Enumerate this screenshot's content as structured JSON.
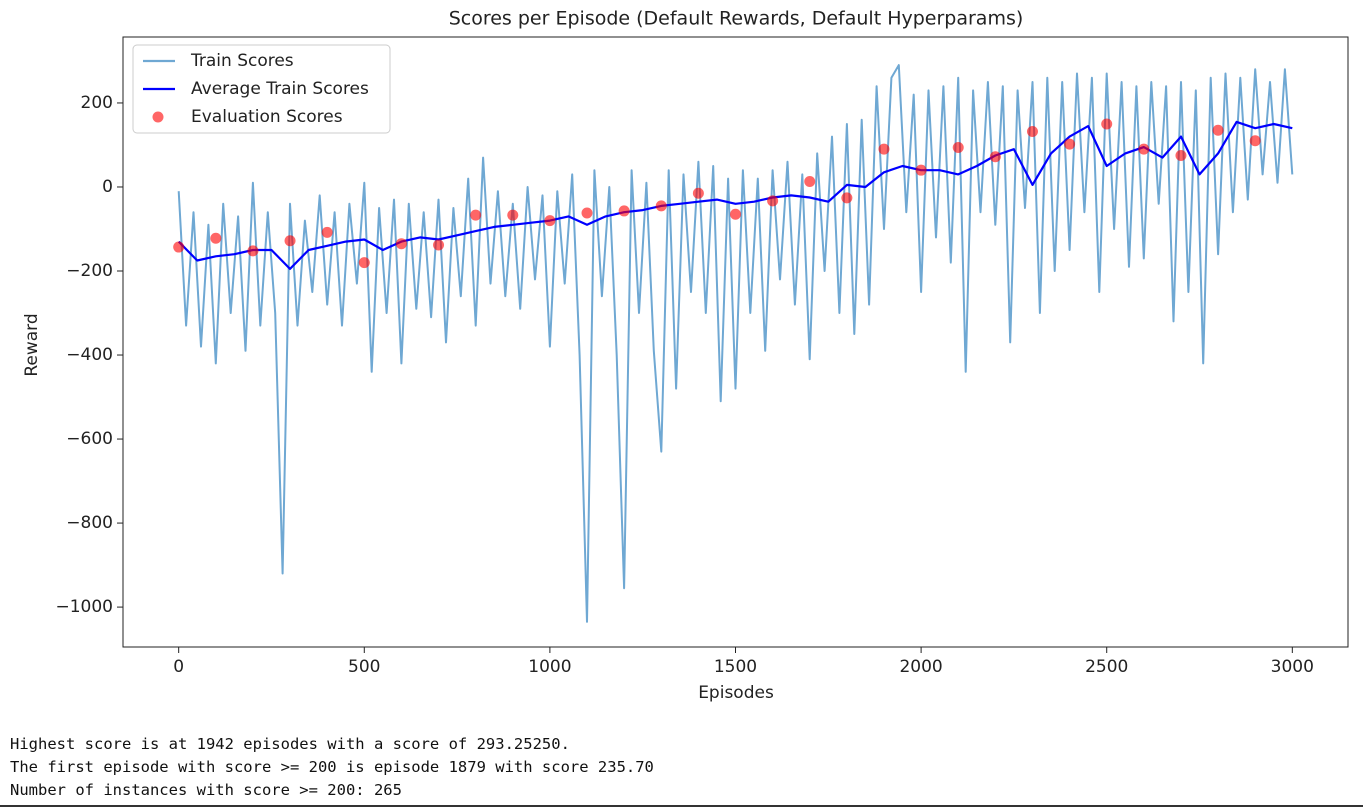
{
  "chart_data": {
    "type": "line",
    "title": "Scores per Episode (Default Rewards, Default Hyperparams)",
    "xlabel": "Episodes",
    "ylabel": "Reward",
    "xlim": [
      -150,
      3150
    ],
    "ylim": [
      -1095,
      357
    ],
    "xticks": [
      0,
      500,
      1000,
      1500,
      2000,
      2500,
      3000
    ],
    "yticks": [
      {
        "value": -1000,
        "label": "−1000"
      },
      {
        "value": -800,
        "label": "−800"
      },
      {
        "value": -600,
        "label": "−600"
      },
      {
        "value": -400,
        "label": "−400"
      },
      {
        "value": -200,
        "label": "−200"
      },
      0,
      200
    ],
    "legend": "upper left",
    "series": [
      {
        "name": "Train Scores",
        "color": "#6fa8d3",
        "type": "line",
        "x": [
          0,
          20,
          40,
          60,
          80,
          100,
          120,
          140,
          160,
          180,
          200,
          220,
          240,
          260,
          280,
          300,
          320,
          340,
          360,
          380,
          400,
          420,
          440,
          460,
          480,
          500,
          520,
          540,
          560,
          580,
          600,
          620,
          640,
          660,
          680,
          700,
          720,
          740,
          760,
          780,
          800,
          820,
          840,
          860,
          880,
          900,
          920,
          940,
          960,
          980,
          1000,
          1020,
          1040,
          1060,
          1080,
          1100,
          1120,
          1140,
          1160,
          1180,
          1200,
          1220,
          1240,
          1260,
          1280,
          1300,
          1320,
          1340,
          1360,
          1380,
          1400,
          1420,
          1440,
          1460,
          1480,
          1500,
          1520,
          1540,
          1560,
          1580,
          1600,
          1620,
          1640,
          1660,
          1680,
          1700,
          1720,
          1740,
          1760,
          1780,
          1800,
          1820,
          1840,
          1860,
          1880,
          1900,
          1920,
          1940,
          1960,
          1980,
          2000,
          2020,
          2040,
          2060,
          2080,
          2100,
          2120,
          2140,
          2160,
          2180,
          2200,
          2220,
          2240,
          2260,
          2280,
          2300,
          2320,
          2340,
          2360,
          2380,
          2400,
          2420,
          2440,
          2460,
          2480,
          2500,
          2520,
          2540,
          2560,
          2580,
          2600,
          2620,
          2640,
          2660,
          2680,
          2700,
          2720,
          2740,
          2760,
          2780,
          2800,
          2820,
          2840,
          2860,
          2880,
          2900,
          2920,
          2940,
          2960,
          2980,
          3000
        ],
        "values": [
          -10,
          -330,
          -60,
          -380,
          -90,
          -420,
          -40,
          -300,
          -70,
          -390,
          10,
          -330,
          -60,
          -300,
          -920,
          -40,
          -330,
          -80,
          -250,
          -20,
          -280,
          -60,
          -330,
          -40,
          -230,
          10,
          -440,
          -50,
          -300,
          -30,
          -420,
          -40,
          -290,
          -60,
          -310,
          -30,
          -370,
          -50,
          -260,
          20,
          -330,
          70,
          -230,
          -10,
          -260,
          -40,
          -290,
          0,
          -220,
          -20,
          -380,
          -10,
          -230,
          30,
          -400,
          -1035,
          40,
          -260,
          0,
          -400,
          -955,
          40,
          -300,
          10,
          -390,
          -630,
          40,
          -480,
          30,
          -250,
          60,
          -300,
          50,
          -510,
          20,
          -480,
          40,
          -300,
          20,
          -390,
          40,
          -220,
          60,
          -280,
          30,
          -410,
          80,
          -200,
          120,
          -300,
          150,
          -350,
          160,
          -280,
          240,
          -100,
          260,
          290,
          -60,
          220,
          -250,
          230,
          -120,
          240,
          -180,
          260,
          -440,
          230,
          -60,
          250,
          -90,
          240,
          -370,
          230,
          -50,
          250,
          -300,
          260,
          -200,
          250,
          -150,
          270,
          -60,
          260,
          -250,
          270,
          -100,
          250,
          -190,
          240,
          -170,
          250,
          -40,
          240,
          -320,
          250,
          -250,
          230,
          -420,
          260,
          -160,
          270,
          -60,
          260,
          -30,
          280,
          30,
          250,
          10,
          280,
          30
        ]
      },
      {
        "name": "Average Train Scores",
        "color": "#0000ff",
        "type": "line",
        "x": [
          0,
          50,
          100,
          150,
          200,
          250,
          300,
          350,
          400,
          450,
          500,
          550,
          600,
          650,
          700,
          750,
          800,
          850,
          900,
          950,
          1000,
          1050,
          1100,
          1150,
          1200,
          1250,
          1300,
          1350,
          1400,
          1450,
          1500,
          1550,
          1600,
          1650,
          1700,
          1750,
          1800,
          1850,
          1900,
          1950,
          2000,
          2050,
          2100,
          2150,
          2200,
          2250,
          2300,
          2350,
          2400,
          2450,
          2500,
          2550,
          2600,
          2650,
          2700,
          2750,
          2800,
          2850,
          2900,
          2950,
          3000
        ],
        "values": [
          -130,
          -175,
          -165,
          -160,
          -150,
          -150,
          -195,
          -150,
          -140,
          -130,
          -125,
          -150,
          -130,
          -120,
          -125,
          -115,
          -105,
          -95,
          -90,
          -85,
          -80,
          -70,
          -90,
          -70,
          -60,
          -55,
          -45,
          -40,
          -35,
          -30,
          -40,
          -35,
          -25,
          -20,
          -25,
          -35,
          5,
          0,
          35,
          50,
          40,
          40,
          30,
          50,
          75,
          90,
          5,
          80,
          120,
          145,
          50,
          80,
          95,
          70,
          120,
          30,
          80,
          155,
          140,
          150,
          140
        ]
      },
      {
        "name": "Evaluation Scores",
        "color": "#ff0000",
        "type": "scatter",
        "x": [
          0,
          100,
          200,
          300,
          400,
          500,
          600,
          700,
          800,
          900,
          1000,
          1100,
          1200,
          1300,
          1400,
          1500,
          1600,
          1700,
          1800,
          1900,
          2000,
          2100,
          2200,
          2300,
          2400,
          2500,
          2600,
          2700,
          2800,
          2900
        ],
        "values": [
          -143,
          -122,
          -152,
          -128,
          -108,
          -180,
          -135,
          -138,
          -67,
          -67,
          -80,
          -62,
          -57,
          -45,
          -15,
          -65,
          -33,
          13,
          -26,
          90,
          40,
          94,
          72,
          132,
          102,
          150,
          90,
          75,
          135,
          110
        ]
      }
    ]
  },
  "output": [
    "Highest score is at 1942 episodes with a score of 293.25250.",
    "The first episode with score >= 200 is episode 1879 with score 235.70",
    "Number of instances with score >= 200: 265"
  ]
}
